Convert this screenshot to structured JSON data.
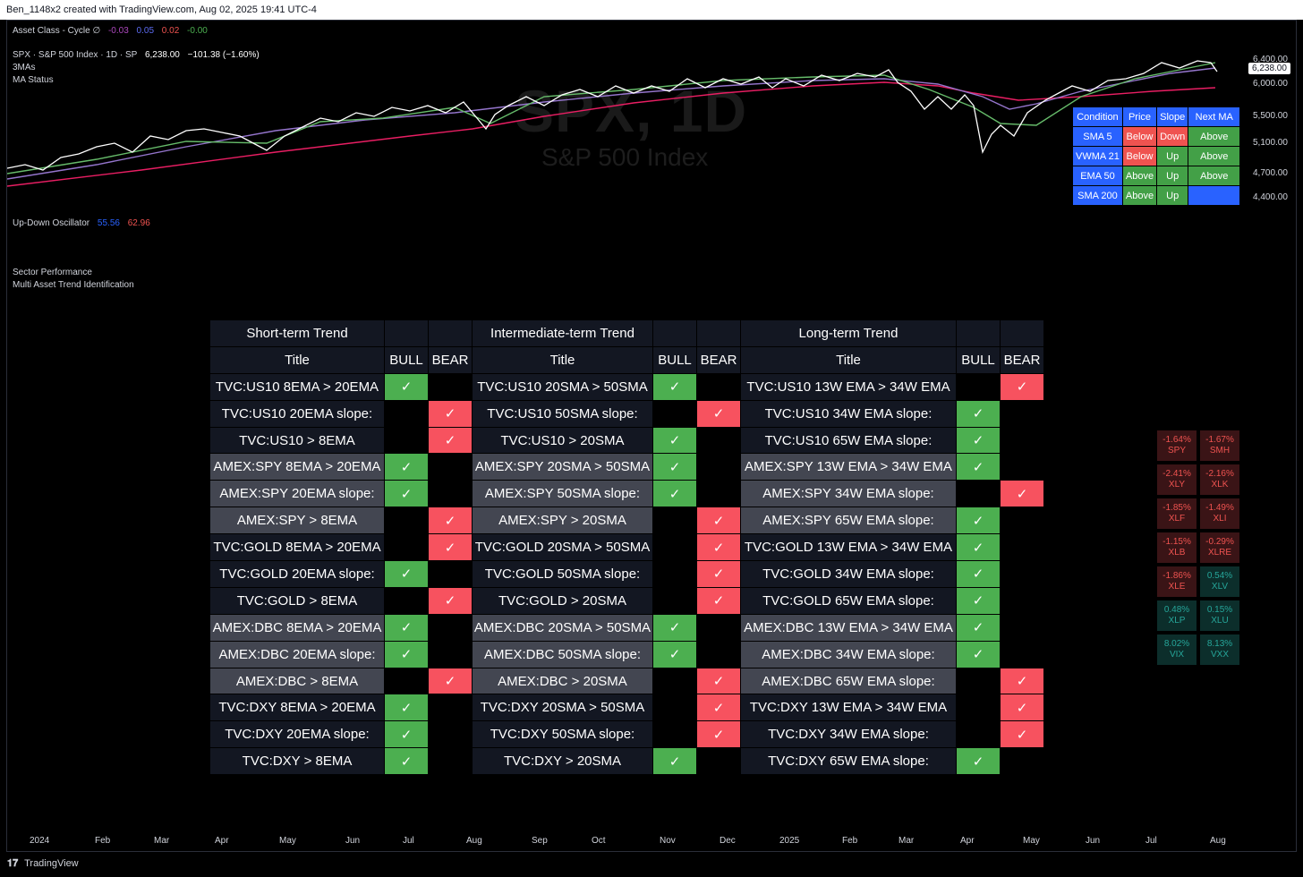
{
  "topbar": "Ben_1148x2 created with TradingView.com, Aug 02, 2025 19:41 UTC-4",
  "legend": {
    "asset_class": {
      "label": "Asset Class - Cycle  ∅",
      "v1": "-0.03",
      "v2": "0.05",
      "v3": "0.02",
      "v4": "-0.00"
    },
    "spx_name": "SPX · S&P 500 Index · 1D · SP",
    "spx_price": "6,238.00",
    "spx_change": "−101.38 (−1.60%)",
    "three_mas": "3MAs",
    "ma_status": "MA Status",
    "osc": {
      "label": "Up-Down Oscillator",
      "v1": "55.56",
      "v2": "62.96"
    },
    "sector_perf": "Sector Performance",
    "multi_asset": "Multi Asset Trend Identification"
  },
  "watermark": {
    "symbol": "SPX, 1D",
    "name": "S&P 500 Index"
  },
  "price_axis": [
    "6,400.00",
    "6,000.00",
    "5,500.00",
    "5,100.00",
    "4,700.00",
    "4,400.00"
  ],
  "price_tag": "6,238.00",
  "ma_table": {
    "headers": [
      "Condition",
      "Price",
      "Slope",
      "Next MA"
    ],
    "rows": [
      {
        "name": "SMA 5",
        "price": "Below",
        "slope": "Down",
        "next": "Above"
      },
      {
        "name": "VWMA 21",
        "price": "Below",
        "slope": "Up",
        "next": "Above"
      },
      {
        "name": "EMA 50",
        "price": "Above",
        "slope": "Up",
        "next": "Above"
      },
      {
        "name": "SMA 200",
        "price": "Above",
        "slope": "Up",
        "next": ""
      }
    ]
  },
  "trend": {
    "groups": [
      "Short-term Trend",
      "Intermediate-term Trend",
      "Long-term Trend"
    ],
    "col_title": "Title",
    "col_bull": "BULL",
    "col_bear": "BEAR",
    "check": "✓",
    "rows": [
      {
        "s": "TVC:US10 8EMA > 20EMA",
        "sb": 1,
        "i": "TVC:US10 20SMA > 50SMA",
        "ib": 1,
        "l": "TVC:US10 13W EMA > 34W EMA",
        "lb": 0,
        "bg": "d"
      },
      {
        "s": "TVC:US10 20EMA slope:",
        "sb": 0,
        "i": "TVC:US10 50SMA slope:",
        "ib": 0,
        "l": "TVC:US10 34W EMA slope:",
        "lb": 1,
        "bg": "d"
      },
      {
        "s": "TVC:US10 > 8EMA",
        "sb": 0,
        "i": "TVC:US10 > 20SMA",
        "ib": 1,
        "l": "TVC:US10 65W EMA slope:",
        "lb": 1,
        "bg": "d"
      },
      {
        "s": "AMEX:SPY 8EMA > 20EMA",
        "sb": 1,
        "i": "AMEX:SPY 20SMA > 50SMA",
        "ib": 1,
        "l": "AMEX:SPY 13W EMA > 34W EMA",
        "lb": 1,
        "bg": "l"
      },
      {
        "s": "AMEX:SPY 20EMA slope:",
        "sb": 1,
        "i": "AMEX:SPY 50SMA slope:",
        "ib": 1,
        "l": "AMEX:SPY 34W EMA slope:",
        "lb": 0,
        "bg": "l"
      },
      {
        "s": "AMEX:SPY > 8EMA",
        "sb": 0,
        "i": "AMEX:SPY > 20SMA",
        "ib": 0,
        "l": "AMEX:SPY 65W EMA slope:",
        "lb": 1,
        "bg": "l"
      },
      {
        "s": "TVC:GOLD 8EMA > 20EMA",
        "sb": 0,
        "i": "TVC:GOLD 20SMA > 50SMA",
        "ib": 0,
        "l": "TVC:GOLD 13W EMA > 34W EMA",
        "lb": 1,
        "bg": "d"
      },
      {
        "s": "TVC:GOLD 20EMA slope:",
        "sb": 1,
        "i": "TVC:GOLD 50SMA slope:",
        "ib": 0,
        "l": "TVC:GOLD 34W EMA slope:",
        "lb": 1,
        "bg": "d"
      },
      {
        "s": "TVC:GOLD > 8EMA",
        "sb": 0,
        "i": "TVC:GOLD > 20SMA",
        "ib": 0,
        "l": "TVC:GOLD 65W EMA slope:",
        "lb": 1,
        "bg": "d"
      },
      {
        "s": "AMEX:DBC 8EMA > 20EMA",
        "sb": 1,
        "i": "AMEX:DBC 20SMA > 50SMA",
        "ib": 1,
        "l": "AMEX:DBC 13W EMA > 34W EMA",
        "lb": 1,
        "bg": "l"
      },
      {
        "s": "AMEX:DBC 20EMA slope:",
        "sb": 1,
        "i": "AMEX:DBC 50SMA slope:",
        "ib": 1,
        "l": "AMEX:DBC 34W EMA slope:",
        "lb": 1,
        "bg": "l"
      },
      {
        "s": "AMEX:DBC > 8EMA",
        "sb": 0,
        "i": "AMEX:DBC > 20SMA",
        "ib": 0,
        "l": "AMEX:DBC 65W EMA slope:",
        "lb": 0,
        "bg": "l"
      },
      {
        "s": "TVC:DXY 8EMA > 20EMA",
        "sb": 1,
        "i": "TVC:DXY 20SMA > 50SMA",
        "ib": 0,
        "l": "TVC:DXY 13W EMA > 34W EMA",
        "lb": 0,
        "bg": "d"
      },
      {
        "s": "TVC:DXY 20EMA slope:",
        "sb": 1,
        "i": "TVC:DXY 50SMA slope:",
        "ib": 0,
        "l": "TVC:DXY 34W EMA slope:",
        "lb": 0,
        "bg": "d"
      },
      {
        "s": "TVC:DXY > 8EMA",
        "sb": 1,
        "i": "TVC:DXY > 20SMA",
        "ib": 1,
        "l": "TVC:DXY 65W EMA slope:",
        "lb": 1,
        "bg": "d"
      }
    ]
  },
  "sectors": [
    {
      "pct": "-1.64%",
      "sym": "SPY"
    },
    {
      "pct": "-1.67%",
      "sym": "SMH"
    },
    {
      "pct": "-2.41%",
      "sym": "XLY"
    },
    {
      "pct": "-2.16%",
      "sym": "XLK"
    },
    {
      "pct": "-1.85%",
      "sym": "XLF"
    },
    {
      "pct": "-1.49%",
      "sym": "XLI"
    },
    {
      "pct": "-1.15%",
      "sym": "XLB"
    },
    {
      "pct": "-0.29%",
      "sym": "XLRE"
    },
    {
      "pct": "-1.86%",
      "sym": "XLE"
    },
    {
      "pct": "0.54%",
      "sym": "XLV"
    },
    {
      "pct": "0.48%",
      "sym": "XLP"
    },
    {
      "pct": "0.15%",
      "sym": "XLU"
    },
    {
      "pct": "8.02%",
      "sym": "VIX"
    },
    {
      "pct": "8.13%",
      "sym": "VXX"
    }
  ],
  "time_axis": [
    "2024",
    "Feb",
    "Mar",
    "Apr",
    "May",
    "Jun",
    "Jul",
    "Aug",
    "Sep",
    "Oct",
    "Nov",
    "Dec",
    "2025",
    "Feb",
    "Mar",
    "Apr",
    "May",
    "Jun",
    "Jul",
    "Aug"
  ],
  "footer": "TradingView",
  "colors": {
    "bull": "#4caf50",
    "bear": "#f7525f",
    "price": "#ffffff",
    "ma_fast": "#66bb6a",
    "ma_mid": "#9575cd",
    "ma_slow": "#e91e63"
  }
}
